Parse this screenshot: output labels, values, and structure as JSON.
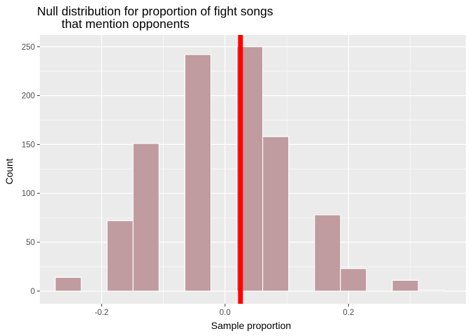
{
  "chart_data": {
    "type": "histogram",
    "title_line1": "Null distribution for proportion of fight songs",
    "title_line2": "that mention opponents",
    "xlabel": "Sample proportion",
    "ylabel": "Count",
    "xlim": [
      -0.3,
      0.39
    ],
    "ylim": [
      -13,
      262
    ],
    "x_ticks": [
      {
        "value": -0.2,
        "label": "-0.2"
      },
      {
        "value": 0.0,
        "label": "0.0"
      },
      {
        "value": 0.2,
        "label": "0.2"
      }
    ],
    "y_ticks": [
      {
        "value": 0,
        "label": "0"
      },
      {
        "value": 50,
        "label": "50"
      },
      {
        "value": 100,
        "label": "100"
      },
      {
        "value": 150,
        "label": "150"
      },
      {
        "value": 200,
        "label": "200"
      },
      {
        "value": 250,
        "label": "250"
      }
    ],
    "bins": [
      {
        "xmin": -0.275,
        "xmax": -0.233,
        "count": 14
      },
      {
        "xmin": -0.233,
        "xmax": -0.191,
        "count": 0
      },
      {
        "xmin": -0.191,
        "xmax": -0.149,
        "count": 72
      },
      {
        "xmin": -0.149,
        "xmax": -0.107,
        "count": 151
      },
      {
        "xmin": -0.107,
        "xmax": -0.065,
        "count": 0
      },
      {
        "xmin": -0.065,
        "xmax": -0.023,
        "count": 242
      },
      {
        "xmin": -0.023,
        "xmax": 0.019,
        "count": 0
      },
      {
        "xmin": 0.019,
        "xmax": 0.061,
        "count": 250
      },
      {
        "xmin": 0.061,
        "xmax": 0.103,
        "count": 158
      },
      {
        "xmin": 0.103,
        "xmax": 0.145,
        "count": 0
      },
      {
        "xmin": 0.145,
        "xmax": 0.187,
        "count": 78
      },
      {
        "xmin": 0.187,
        "xmax": 0.229,
        "count": 23
      },
      {
        "xmin": 0.229,
        "xmax": 0.271,
        "count": 0
      },
      {
        "xmin": 0.271,
        "xmax": 0.313,
        "count": 11
      },
      {
        "xmin": 0.313,
        "xmax": 0.355,
        "count": 1
      }
    ],
    "observed_stat": 0.025,
    "grid": true,
    "colors": {
      "panel_background": "#ebebeb",
      "grid_major": "#ffffff",
      "bar_fill": "#c09ba0",
      "bar_outline": "#ffffff",
      "observed_line": "#ff0000"
    }
  }
}
